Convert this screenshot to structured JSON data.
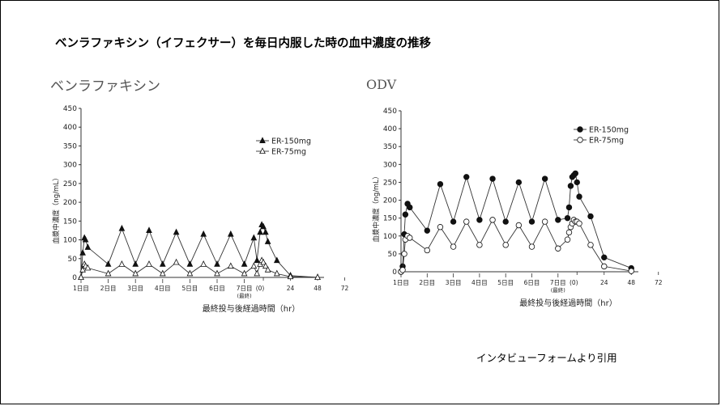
{
  "title": "ベンラファキシン（イフェクサー）を毎日内服した時の血中濃度の推移",
  "credit": "インタビューフォームより引用",
  "chart_data": [
    {
      "type": "line",
      "panel_title": "ベンラファキシン",
      "ylabel": "血漿中濃度（ng/mL）",
      "xlabel": "最終投与後経過時間（hr）",
      "ylim": [
        0,
        450
      ],
      "yticks": [
        "0",
        "50",
        "100",
        "150",
        "200",
        "250",
        "300",
        "350",
        "400",
        "450"
      ],
      "day_labels": [
        "1日目",
        "2日目",
        "3日目",
        "4日目",
        "5日目",
        "6日目",
        "7日目"
      ],
      "final_label": "(最終)",
      "post_ticks": [
        "(0)",
        "24",
        "48",
        "72"
      ],
      "legend": [
        "ER-150mg",
        "ER-75mg"
      ],
      "series": [
        {
          "name": "ER-150mg",
          "marker": "filled-triangle",
          "x": [
            0,
            1.5,
            3,
            4,
            6,
            24,
            36,
            48,
            60,
            72,
            84,
            96,
            108,
            120,
            132,
            144,
            156,
            160,
            164,
            166,
            168,
            170,
            172,
            180,
            192,
            216
          ],
          "y": [
            0,
            65,
            105,
            100,
            80,
            35,
            130,
            35,
            125,
            35,
            120,
            35,
            115,
            35,
            115,
            35,
            105,
            45,
            120,
            140,
            135,
            120,
            95,
            45,
            5,
            0
          ]
        },
        {
          "name": "ER-75mg",
          "marker": "open-triangle",
          "x": [
            0,
            1.5,
            3,
            4,
            6,
            24,
            36,
            48,
            60,
            72,
            84,
            96,
            108,
            120,
            132,
            144,
            156,
            160,
            164,
            166,
            168,
            170,
            172,
            180,
            192,
            216
          ],
          "y": [
            0,
            20,
            35,
            30,
            25,
            10,
            35,
            10,
            35,
            10,
            40,
            10,
            35,
            10,
            30,
            10,
            30,
            10,
            35,
            45,
            40,
            30,
            20,
            10,
            2,
            0
          ]
        }
      ]
    },
    {
      "type": "line",
      "panel_title": "ODV",
      "ylabel": "血漿中濃度（ng/mL）",
      "xlabel": "最終投与後経過時間（hr）",
      "ylim": [
        0,
        450
      ],
      "yticks": [
        "0",
        "50",
        "100",
        "150",
        "200",
        "250",
        "300",
        "350",
        "400",
        "450"
      ],
      "day_labels": [
        "1日目",
        "2日目",
        "3日目",
        "4日目",
        "5日目",
        "6日目",
        "7日目"
      ],
      "final_label": "(最終)",
      "post_ticks": [
        "(0)",
        "24",
        "48",
        "72"
      ],
      "legend": [
        "ER-150mg",
        "ER-75mg"
      ],
      "series": [
        {
          "name": "ER-150mg",
          "marker": "filled-circle",
          "x": [
            0,
            1.5,
            3,
            4,
            6,
            8,
            24,
            36,
            48,
            60,
            72,
            84,
            96,
            108,
            120,
            132,
            144,
            156,
            158,
            160,
            162,
            164,
            166,
            168,
            170,
            180,
            192,
            216
          ],
          "y": [
            0,
            15,
            105,
            160,
            190,
            180,
            115,
            245,
            140,
            265,
            145,
            260,
            140,
            250,
            140,
            260,
            145,
            150,
            180,
            240,
            265,
            270,
            275,
            250,
            210,
            155,
            40,
            10
          ]
        },
        {
          "name": "ER-75mg",
          "marker": "open-circle",
          "x": [
            0,
            1.5,
            3,
            4,
            6,
            8,
            24,
            36,
            48,
            60,
            72,
            84,
            96,
            108,
            120,
            132,
            144,
            156,
            158,
            160,
            162,
            164,
            166,
            168,
            170,
            180,
            192,
            216
          ],
          "y": [
            0,
            5,
            50,
            90,
            100,
            95,
            60,
            125,
            70,
            140,
            75,
            145,
            75,
            130,
            70,
            140,
            65,
            90,
            110,
            125,
            135,
            145,
            140,
            140,
            135,
            75,
            15,
            2
          ]
        }
      ]
    }
  ]
}
